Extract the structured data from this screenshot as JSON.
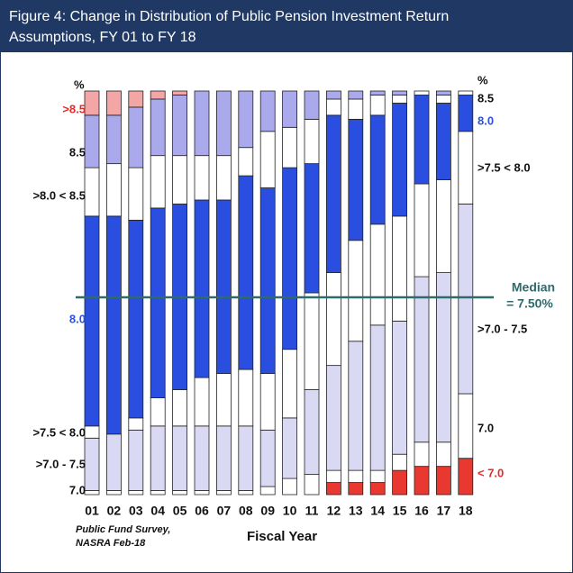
{
  "chart_data": {
    "type": "stacked_bar",
    "title": "Figure 4: Change in Distribution of Public Pension Investment Return Assumptions, FY 01 to FY 18",
    "title_lines": [
      "Figure 4: Change in Distribution of Public Pension Investment Return",
      "Assumptions, FY 01 to FY 18"
    ],
    "y_unit": "%",
    "x_label": "Fiscal Year",
    "source": [
      "Public Fund Survey,",
      "NASRA Feb-18"
    ],
    "annotation": [
      "Median",
      "= 7.50%"
    ],
    "categories": [
      "01",
      "02",
      "03",
      "04",
      "05",
      "06",
      "07",
      "08",
      "09",
      "10",
      "11",
      "12",
      "13",
      "14",
      "15",
      "16",
      "17",
      "18"
    ],
    "ylim": [
      0,
      100
    ],
    "series": [
      {
        "name": "< 7.0",
        "color": "#e8382f",
        "values": [
          0,
          0,
          0,
          0,
          0,
          0,
          0,
          0,
          0,
          0,
          0,
          3,
          3,
          3,
          6,
          7,
          7,
          9
        ]
      },
      {
        "name": "7.0",
        "color": "#ffffff",
        "values": [
          1,
          1,
          1,
          1,
          1,
          1,
          1,
          1,
          2,
          4,
          5,
          3,
          3,
          3,
          4,
          6,
          6,
          16
        ]
      },
      {
        "name": ">7.0 - 7.5",
        "color": "#d9d9f3",
        "values": [
          13,
          14,
          15,
          16,
          16,
          16,
          16,
          16,
          14,
          15,
          21,
          26,
          32,
          36,
          33,
          41,
          42,
          47
        ]
      },
      {
        "name": ">7.5 < 8.0",
        "color": "#ffffff",
        "values": [
          3,
          0,
          3,
          7,
          9,
          12,
          13,
          14,
          14,
          17,
          24,
          23,
          25,
          25,
          26,
          23,
          23,
          18
        ]
      },
      {
        "name": "8.0",
        "color": "#2a4fe0",
        "values": [
          52,
          54,
          49,
          47,
          46,
          44,
          43,
          48,
          46,
          45,
          32,
          39,
          30,
          27,
          28,
          22,
          19,
          9
        ]
      },
      {
        "name": ">8.0 < 8.5",
        "color": "#ffffff",
        "values": [
          12,
          13,
          13,
          13,
          12,
          11,
          11,
          7,
          14,
          10,
          11,
          4,
          5,
          5,
          2,
          1,
          2,
          1
        ]
      },
      {
        "name": "8.5",
        "color": "#a9a9ec",
        "values": [
          13,
          12,
          15,
          14,
          15,
          16,
          16,
          14,
          10,
          9,
          7,
          2,
          2,
          1,
          1,
          0,
          1,
          0
        ]
      },
      {
        "name": ">8.5",
        "color": "#f4a5a5",
        "values": [
          6,
          6,
          4,
          2,
          1,
          0,
          0,
          0,
          0,
          0,
          0,
          0,
          0,
          0,
          0,
          0,
          0,
          0
        ]
      }
    ]
  }
}
